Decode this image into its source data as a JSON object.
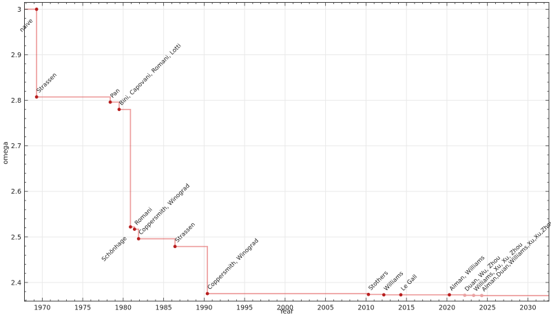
{
  "chart_data": {
    "type": "line",
    "subtype": "step-post",
    "title": "",
    "xlabel": "Year",
    "ylabel": "omega",
    "xlim": [
      1967.8,
      2032.6
    ],
    "ylim": [
      2.359,
      3.015
    ],
    "x_major_ticks": [
      1970,
      1975,
      1980,
      1985,
      1990,
      1995,
      2000,
      2005,
      2010,
      2015,
      2020,
      2025,
      2030
    ],
    "x_minor_step": 1,
    "y_major_ticks": [
      2.4,
      2.5,
      2.6,
      2.7,
      2.8,
      2.9,
      3
    ],
    "y_minor_step": 0.02,
    "grid": true,
    "legend": "none",
    "points": [
      {
        "label": "naive",
        "year": 1969.3,
        "omega": 3.0,
        "provisional": false,
        "placement": "below"
      },
      {
        "label": "Strassen",
        "year": 1969.3,
        "omega": 2.8074,
        "provisional": false,
        "placement": "above"
      },
      {
        "label": "Pan",
        "year": 1978.4,
        "omega": 2.796,
        "provisional": false,
        "placement": "above"
      },
      {
        "label": "Bini, Capovani, Romani, Lotti",
        "year": 1979.5,
        "omega": 2.78,
        "provisional": false,
        "placement": "above"
      },
      {
        "label": "Schönhage",
        "year": 1980.9,
        "omega": 2.522,
        "provisional": false,
        "placement": "below"
      },
      {
        "label": "Romani",
        "year": 1981.4,
        "omega": 2.517,
        "provisional": false,
        "placement": "above"
      },
      {
        "label": "Coppersmith, Winograd",
        "year": 1981.9,
        "omega": 2.496,
        "provisional": false,
        "placement": "above"
      },
      {
        "label": "Strassen",
        "year": 1986.4,
        "omega": 2.479,
        "provisional": false,
        "placement": "above"
      },
      {
        "label": "Coppersmith, Winograd",
        "year": 1990.4,
        "omega": 2.3755,
        "provisional": false,
        "placement": "above"
      },
      {
        "label": "Stothers",
        "year": 2010.3,
        "omega": 2.3737,
        "provisional": false,
        "placement": "above"
      },
      {
        "label": "Williams",
        "year": 2012.2,
        "omega": 2.3729,
        "provisional": false,
        "placement": "above"
      },
      {
        "label": "Le Gall",
        "year": 2014.3,
        "omega": 2.3729,
        "provisional": false,
        "placement": "above"
      },
      {
        "label": "Alman, Williams",
        "year": 2020.3,
        "omega": 2.3729,
        "provisional": false,
        "placement": "above"
      },
      {
        "label": "Duan, Wu, Zhou",
        "year": 2022.2,
        "omega": 2.3719,
        "provisional": true,
        "placement": "above"
      },
      {
        "label": "Williams, Xu, Xu, Zhou",
        "year": 2023.3,
        "omega": 2.3716,
        "provisional": true,
        "placement": "above"
      },
      {
        "label": "Alman,Duan,Williams,Xu,Xu,Zhou",
        "year": 2024.3,
        "omega": 2.3713,
        "provisional": true,
        "placement": "above"
      }
    ]
  },
  "style": {
    "line_color": "rgba(214,39,40,0.45)",
    "marker_color": "#b71f1f",
    "provisional_marker_color": "#e9a2a2",
    "label_color": "#111111",
    "provisional_label_color": "#9e9e9e",
    "grid_color": "#e9e9e9",
    "spine_color": "#3a3a3a",
    "tick_color": "#3a3a3a",
    "tick_label_color": "#1a1a1a",
    "background": "#ffffff"
  }
}
